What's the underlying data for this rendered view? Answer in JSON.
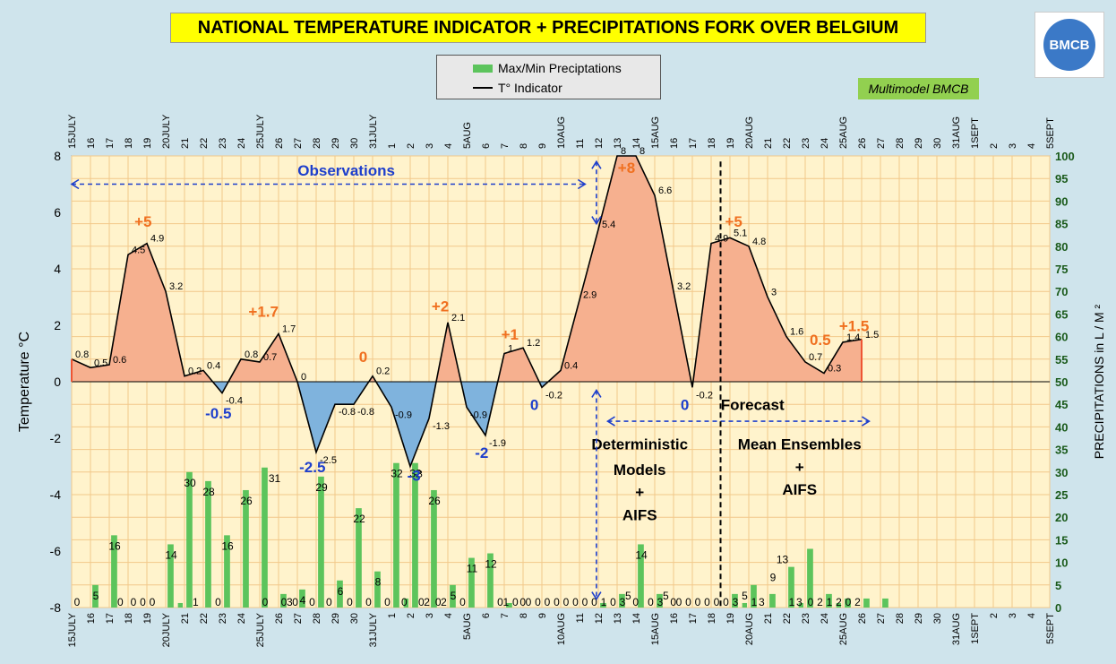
{
  "title": "NATIONAL TEMPERATURE INDICATOR + PRECIPITATIONS FORK OVER  BELGIUM",
  "legend": {
    "precip_label": "Max/Min Preciptations",
    "temp_label": "T° Indicator"
  },
  "multimodel_label": "Multimodel BMCB",
  "logo_text": "BMCB",
  "colors": {
    "frame": "#cfe4ec",
    "plot_bg": "#fff3cc",
    "grid": "#f2c88a",
    "warm_fill": "#f6b08f",
    "cold_fill": "#7fb3dd",
    "bar": "#5cc45c",
    "annot_warm": "#f07020",
    "annot_cold": "#1e3fcc",
    "annot_blue_text": "#1e3fcc"
  },
  "chart_data": {
    "type": "line+bar",
    "ylabel": "Temperature   °C",
    "y2label": "PRECIPITATIONS in L / M ²",
    "ylim": [
      -8,
      8
    ],
    "y2lim": [
      0,
      100
    ],
    "y_ticks": [
      -8,
      -6,
      -4,
      -2,
      0,
      2,
      4,
      6,
      8
    ],
    "y2_ticks": [
      0,
      5,
      10,
      15,
      20,
      25,
      30,
      35,
      40,
      45,
      50,
      55,
      60,
      65,
      70,
      75,
      80,
      85,
      90,
      95,
      100
    ],
    "categories": [
      "15JULY",
      "16",
      "17",
      "18",
      "19",
      "20JULY",
      "21",
      "22",
      "23",
      "24",
      "25JULY",
      "26",
      "27",
      "28",
      "29",
      "30",
      "31JULY",
      "1",
      "2",
      "3",
      "4",
      "5AUG",
      "6",
      "7",
      "8",
      "9",
      "10AUG",
      "11",
      "12",
      "13",
      "14",
      "15AUG",
      "16",
      "17",
      "18",
      "19",
      "20AUG",
      "21",
      "22",
      "23",
      "24",
      "25AUG",
      "26",
      "27",
      "28",
      "29",
      "30",
      "31AUG",
      "1SEPT",
      "2",
      "3",
      "4",
      "5SEPT"
    ],
    "temperature": {
      "name": "T° Indicator",
      "points": [
        {
          "x": 0,
          "y": 0.8
        },
        {
          "x": 1,
          "y": 0.5
        },
        {
          "x": 2,
          "y": 0.6
        },
        {
          "x": 3,
          "y": 4.5
        },
        {
          "x": 4,
          "y": 4.9
        },
        {
          "x": 5,
          "y": 3.2
        },
        {
          "x": 6,
          "y": 0.2
        },
        {
          "x": 7,
          "y": 0.4
        },
        {
          "x": 8,
          "y": -0.4
        },
        {
          "x": 9,
          "y": 0.8
        },
        {
          "x": 10,
          "y": 0.7
        },
        {
          "x": 11,
          "y": 1.7
        },
        {
          "x": 12,
          "y": 0
        },
        {
          "x": 13,
          "y": -2.5
        },
        {
          "x": 14,
          "y": -0.8
        },
        {
          "x": 15,
          "y": -0.8
        },
        {
          "x": 16,
          "y": 0.2
        },
        {
          "x": 17,
          "y": -0.9
        },
        {
          "x": 18,
          "y": -3
        },
        {
          "x": 19,
          "y": -1.3
        },
        {
          "x": 20,
          "y": 2.1
        },
        {
          "x": 21,
          "y": -0.9
        },
        {
          "x": 22,
          "y": -1.9
        },
        {
          "x": 23,
          "y": 1
        },
        {
          "x": 24,
          "y": 1.2
        },
        {
          "x": 25,
          "y": -0.2
        },
        {
          "x": 26,
          "y": 0.4
        },
        {
          "x": 27,
          "y": 2.9
        },
        {
          "x": 28,
          "y": 5.4
        },
        {
          "x": 29,
          "y": 8
        },
        {
          "x": 30,
          "y": 8
        },
        {
          "x": 31,
          "y": 6.6
        },
        {
          "x": 32,
          "y": 3.2
        },
        {
          "x": 33,
          "y": -0.2
        },
        {
          "x": 34,
          "y": 4.9
        },
        {
          "x": 35,
          "y": 5.1
        },
        {
          "x": 36,
          "y": 4.8
        },
        {
          "x": 37,
          "y": 3
        },
        {
          "x": 38,
          "y": 1.6
        },
        {
          "x": 39,
          "y": 0.7
        },
        {
          "x": 40,
          "y": 0.3
        },
        {
          "x": 41,
          "y": 1.4
        },
        {
          "x": 42,
          "y": 1.5
        }
      ],
      "point_labels": [
        {
          "x": 0,
          "text": "0.8"
        },
        {
          "x": 1,
          "text": "0.5"
        },
        {
          "x": 2,
          "text": "0.6"
        },
        {
          "x": 3,
          "text": "4.5"
        },
        {
          "x": 4,
          "text": "4.9"
        },
        {
          "x": 5,
          "text": "3.2"
        },
        {
          "x": 6,
          "text": "0.2"
        },
        {
          "x": 7,
          "text": "0.4"
        },
        {
          "x": 8,
          "text": "-0.4"
        },
        {
          "x": 9,
          "text": "0.8"
        },
        {
          "x": 10,
          "text": "0.7"
        },
        {
          "x": 11,
          "text": "1.7"
        },
        {
          "x": 12,
          "text": "0"
        },
        {
          "x": 13,
          "text": "-2.5"
        },
        {
          "x": 14,
          "text": "-0.8"
        },
        {
          "x": 15,
          "text": "-0.8"
        },
        {
          "x": 16,
          "text": "0.2"
        },
        {
          "x": 17,
          "text": "-0.9"
        },
        {
          "x": 18,
          "text": "-3"
        },
        {
          "x": 19,
          "text": "-1.3"
        },
        {
          "x": 20,
          "text": "2.1"
        },
        {
          "x": 21,
          "text": "-0.9"
        },
        {
          "x": 22,
          "text": "-1.9"
        },
        {
          "x": 23,
          "text": "1"
        },
        {
          "x": 24,
          "text": "1.2"
        },
        {
          "x": 25,
          "text": "-0.2"
        },
        {
          "x": 26,
          "text": "0.4"
        },
        {
          "x": 27,
          "text": "2.9"
        },
        {
          "x": 28,
          "text": "5.4"
        },
        {
          "x": 29,
          "text": "8"
        },
        {
          "x": 30,
          "text": "8"
        },
        {
          "x": 31,
          "text": "6.6"
        },
        {
          "x": 32,
          "text": "3.2"
        },
        {
          "x": 33,
          "text": "-0.2"
        },
        {
          "x": 34,
          "text": "4.9"
        },
        {
          "x": 35,
          "text": "5.1"
        },
        {
          "x": 36,
          "text": "4.8"
        },
        {
          "x": 37,
          "text": "3"
        },
        {
          "x": 38,
          "text": "1.6"
        },
        {
          "x": 39,
          "text": "0.7"
        },
        {
          "x": 40,
          "text": "0.3"
        },
        {
          "x": 41,
          "text": "1.4"
        },
        {
          "x": 42,
          "text": "1.5"
        }
      ]
    },
    "precipitation": {
      "name": "Max/Min Preciptations",
      "bars": [
        {
          "x": 0,
          "max": 0,
          "min": 0
        },
        {
          "x": 1,
          "max": 5,
          "min": 0
        },
        {
          "x": 2,
          "max": 16,
          "min": 0
        },
        {
          "x": 3,
          "max": 0,
          "min": 0
        },
        {
          "x": 4,
          "max": 0,
          "min": 0
        },
        {
          "x": 5,
          "max": 14,
          "min": 0
        },
        {
          "x": 6,
          "max": 30,
          "min": 1
        },
        {
          "x": 7,
          "max": 28,
          "min": 0
        },
        {
          "x": 8,
          "max": 16,
          "min": 0
        },
        {
          "x": 9,
          "max": 26,
          "min": 0
        },
        {
          "x": 10,
          "max": 31,
          "min": 0
        },
        {
          "x": 11,
          "max": 3,
          "min": 0
        },
        {
          "x": 12,
          "max": 4,
          "min": 0
        },
        {
          "x": 13,
          "max": 29,
          "min": 0
        },
        {
          "x": 14,
          "max": 6,
          "min": 0
        },
        {
          "x": 15,
          "max": 22,
          "min": 0
        },
        {
          "x": 16,
          "max": 8,
          "min": 0
        },
        {
          "x": 17,
          "max": 32,
          "min": 0
        },
        {
          "x": 18,
          "max": 32,
          "min": 2
        },
        {
          "x": 19,
          "max": 26,
          "min": 0
        },
        {
          "x": 20,
          "max": 5,
          "min": 0
        },
        {
          "x": 21,
          "max": 11,
          "min": 0
        },
        {
          "x": 22,
          "max": 12,
          "min": 0
        },
        {
          "x": 23,
          "max": 1,
          "min": 0
        },
        {
          "x": 24,
          "max": 0,
          "min": 0
        },
        {
          "x": 25,
          "max": 0,
          "min": 0
        },
        {
          "x": 26,
          "max": 0,
          "min": 0
        },
        {
          "x": 27,
          "max": 0,
          "min": 0
        },
        {
          "x": 28,
          "max": 1,
          "min": 0
        },
        {
          "x": 29,
          "max": 3,
          "min": 0
        },
        {
          "x": 30,
          "max": 14,
          "min": 0
        },
        {
          "x": 31,
          "max": 3,
          "min": 0
        },
        {
          "x": 32,
          "max": 0,
          "min": 0
        },
        {
          "x": 33,
          "max": 0,
          "min": 0
        },
        {
          "x": 34,
          "max": 0,
          "min": 0
        },
        {
          "x": 35,
          "max": 3,
          "min": 0
        },
        {
          "x": 36,
          "max": 5,
          "min": 1
        },
        {
          "x": 37,
          "max": 3,
          "min": 0
        },
        {
          "x": 38,
          "max": 9,
          "min": 0
        },
        {
          "x": 39,
          "max": 13,
          "min": 1
        },
        {
          "x": 40,
          "max": 3,
          "min": 0
        },
        {
          "x": 41,
          "max": 2,
          "min": 1
        },
        {
          "x": 42,
          "max": 2,
          "min": 0
        },
        {
          "x": 43,
          "max": 2,
          "min": 0
        }
      ],
      "bar_labels": [
        {
          "x": 0,
          "text": "0"
        },
        {
          "x": 1,
          "text": "5"
        },
        {
          "x": 2,
          "text": "16"
        },
        {
          "x": 2.3,
          "text": "0"
        },
        {
          "x": 3,
          "text": "0"
        },
        {
          "x": 3.5,
          "text": "0"
        },
        {
          "x": 4,
          "text": "0"
        },
        {
          "x": 5,
          "text": "14"
        },
        {
          "x": 6,
          "text": "30"
        },
        {
          "x": 6.3,
          "text": "1"
        },
        {
          "x": 7,
          "text": "28"
        },
        {
          "x": 7.5,
          "text": "0"
        },
        {
          "x": 8,
          "text": "16"
        },
        {
          "x": 9,
          "text": "26"
        },
        {
          "x": 10,
          "text": "0"
        },
        {
          "x": 10.5,
          "text": "31"
        },
        {
          "x": 11,
          "text": "0"
        },
        {
          "x": 11.3,
          "text": "3"
        },
        {
          "x": 12,
          "text": "4"
        },
        {
          "x": 11.6,
          "text": "0"
        },
        {
          "x": 13,
          "text": "29"
        },
        {
          "x": 12.5,
          "text": "0"
        },
        {
          "x": 13.4,
          "text": "0"
        },
        {
          "x": 14,
          "text": "6"
        },
        {
          "x": 14.5,
          "text": "0"
        },
        {
          "x": 15,
          "text": "22"
        },
        {
          "x": 15.5,
          "text": "0"
        },
        {
          "x": 16,
          "text": "8"
        },
        {
          "x": 16.5,
          "text": "0"
        },
        {
          "x": 17,
          "text": "32"
        },
        {
          "x": 17.4,
          "text": "0"
        },
        {
          "x": 18,
          "text": "32"
        },
        {
          "x": 18.3,
          "text": "0"
        },
        {
          "x": 18.6,
          "text": "2"
        },
        {
          "x": 19,
          "text": "26"
        },
        {
          "x": 19.2,
          "text": "0"
        },
        {
          "x": 19.5,
          "text": "2"
        },
        {
          "x": 20,
          "text": "5"
        },
        {
          "x": 20.5,
          "text": "0"
        },
        {
          "x": 21,
          "text": "11"
        },
        {
          "x": 22,
          "text": "12"
        },
        {
          "x": 22.5,
          "text": "0"
        },
        {
          "x": 22.8,
          "text": "1"
        },
        {
          "x": 23.3,
          "text": "0"
        },
        {
          "x": 23.7,
          "text": "0"
        },
        {
          "x": 24,
          "text": "0"
        },
        {
          "x": 24.5,
          "text": "0"
        },
        {
          "x": 25,
          "text": "0"
        },
        {
          "x": 25.5,
          "text": "0"
        },
        {
          "x": 26,
          "text": "0"
        },
        {
          "x": 26.5,
          "text": "0"
        },
        {
          "x": 27,
          "text": "0"
        },
        {
          "x": 27.5,
          "text": "0"
        },
        {
          "x": 28,
          "text": "1"
        },
        {
          "x": 28.5,
          "text": "0"
        },
        {
          "x": 29,
          "text": "3"
        },
        {
          "x": 29.3,
          "text": "5"
        },
        {
          "x": 30,
          "text": "14"
        },
        {
          "x": 29.7,
          "text": "0"
        },
        {
          "x": 30.5,
          "text": "0"
        },
        {
          "x": 31,
          "text": "3"
        },
        {
          "x": 31.3,
          "text": "5"
        },
        {
          "x": 31.7,
          "text": "0"
        },
        {
          "x": 32,
          "text": "0"
        },
        {
          "x": 32.5,
          "text": "0"
        },
        {
          "x": 33,
          "text": "0"
        },
        {
          "x": 33.5,
          "text": "0"
        },
        {
          "x": 34,
          "text": "0"
        },
        {
          "x": 34.5,
          "text": "0"
        },
        {
          "x": 35,
          "text": "3"
        },
        {
          "x": 35.5,
          "text": "5"
        },
        {
          "x": 36,
          "text": "1"
        },
        {
          "x": 36.4,
          "text": "3"
        },
        {
          "x": 37,
          "text": "9"
        },
        {
          "x": 37.5,
          "text": "13"
        },
        {
          "x": 38,
          "text": "1"
        },
        {
          "x": 38.4,
          "text": "3"
        },
        {
          "x": 39,
          "text": "0"
        },
        {
          "x": 39.5,
          "text": "2"
        },
        {
          "x": 40,
          "text": "1"
        },
        {
          "x": 40.5,
          "text": "2"
        },
        {
          "x": 41,
          "text": "0"
        },
        {
          "x": 41.5,
          "text": "2"
        }
      ]
    },
    "annotations": [
      {
        "x": 3.8,
        "y": 5.5,
        "text": "+5",
        "color": "warm"
      },
      {
        "x": 10.2,
        "y": 2.3,
        "text": "+1.7",
        "color": "warm"
      },
      {
        "x": 15.5,
        "y": 0.7,
        "text": "0",
        "color": "warm"
      },
      {
        "x": 19.6,
        "y": 2.5,
        "text": "+2",
        "color": "warm"
      },
      {
        "x": 23.3,
        "y": 1.5,
        "text": "+1",
        "color": "warm"
      },
      {
        "x": 29.5,
        "y": 7.4,
        "text": "+8",
        "color": "warm"
      },
      {
        "x": 35.2,
        "y": 5.5,
        "text": "+5",
        "color": "warm"
      },
      {
        "x": 39.8,
        "y": 1.3,
        "text": "0.5",
        "color": "warm"
      },
      {
        "x": 41.6,
        "y": 1.8,
        "text": "+1.5",
        "color": "warm"
      },
      {
        "x": 7.8,
        "y": -1.3,
        "text": "-0.5",
        "color": "cold"
      },
      {
        "x": 12.8,
        "y": -3.2,
        "text": "-2.5",
        "color": "cold"
      },
      {
        "x": 18.2,
        "y": -3.5,
        "text": "-3",
        "color": "cold"
      },
      {
        "x": 21.8,
        "y": -2.7,
        "text": "-2",
        "color": "cold"
      },
      {
        "x": 24.6,
        "y": -1.0,
        "text": "0",
        "color": "cold"
      },
      {
        "x": 32.6,
        "y": -1.0,
        "text": "0",
        "color": "cold"
      }
    ],
    "text_labels": [
      {
        "id": "observations",
        "text": "Observations",
        "x": 14.6,
        "y": 7.3
      },
      {
        "id": "forecast",
        "text": "Forecast",
        "x": 36.2,
        "y": -1.0
      },
      {
        "id": "det1",
        "text": "Deterministic",
        "x": 30.2,
        "y": -2.4
      },
      {
        "id": "det2",
        "text": "Models",
        "x": 30.2,
        "y": -3.3
      },
      {
        "id": "det3",
        "text": "+",
        "x": 30.2,
        "y": -4.1
      },
      {
        "id": "det4",
        "text": "AIFS",
        "x": 30.2,
        "y": -4.9
      },
      {
        "id": "ens1",
        "text": "Mean Ensembles",
        "x": 38.7,
        "y": -2.4
      },
      {
        "id": "ens2",
        "text": "+",
        "x": 38.7,
        "y": -3.2
      },
      {
        "id": "ens3",
        "text": "AIFS",
        "x": 38.7,
        "y": -4.0
      }
    ],
    "observation_arrow": {
      "x_start": 0,
      "x_end": 27.3,
      "y": 7.0
    },
    "forecast_arrow": {
      "x_start": 28.5,
      "x_end": 42.4,
      "y": -1.4
    },
    "vertical_arrow": {
      "x": 27.9,
      "y_top": 7.8,
      "y_bottom": -7.7
    },
    "vertical_arrow_short": {
      "x": 27.9,
      "y_top": 7.8,
      "y_bottom": 5.6
    },
    "separator_line": {
      "x": 34.5,
      "y_top": 7.8,
      "y_bottom": -8
    }
  }
}
